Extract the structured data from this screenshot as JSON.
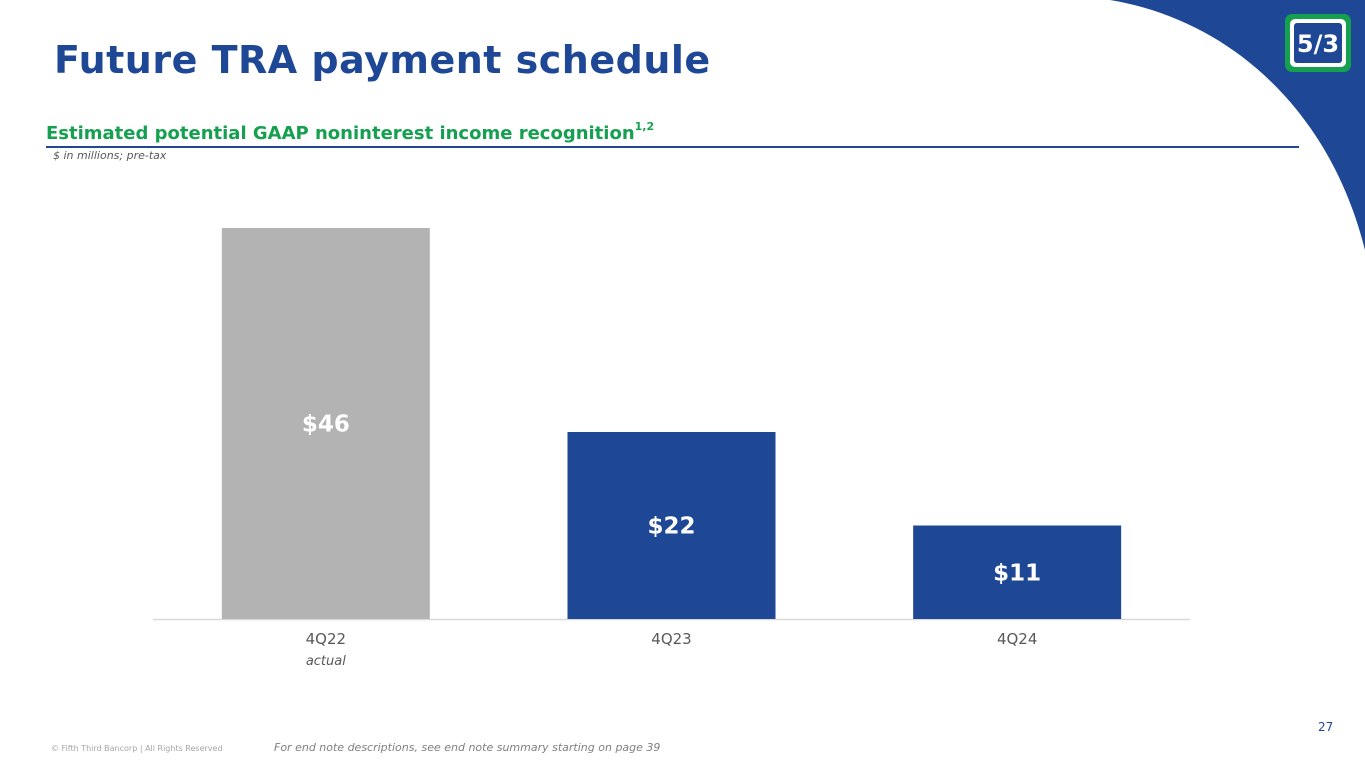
{
  "slide": {
    "title": "Future TRA payment schedule",
    "subtitle": "Estimated potential GAAP noninterest income recognition",
    "subtitle_footnote": "1,2",
    "units_note": "$ in millions; pre-tax",
    "page_number": "27",
    "copyright": "© Fifth Third Bancorp | All Rights Reserved",
    "end_note": "For end note descriptions, see end note summary starting on page 39",
    "logo_text": "5/3"
  },
  "colors": {
    "brand_blue": "#1e4796",
    "brand_green": "#15a050",
    "actual_bar": "#b3b3b3",
    "projected_bar": "#1e4796"
  },
  "chart_data": {
    "type": "bar",
    "categories": [
      "4Q22",
      "4Q23",
      "4Q24"
    ],
    "category_notes": [
      "actual",
      "",
      ""
    ],
    "values": [
      46,
      22,
      11
    ],
    "value_labels": [
      "$46",
      "$22",
      "$11"
    ],
    "bar_colors": [
      "#b3b3b3",
      "#1e4796",
      "#1e4796"
    ],
    "title": "Estimated potential GAAP noninterest income recognition",
    "ylabel": "$ in millions; pre-tax",
    "ylim": [
      0,
      46
    ],
    "grid": false,
    "legend": "none"
  }
}
